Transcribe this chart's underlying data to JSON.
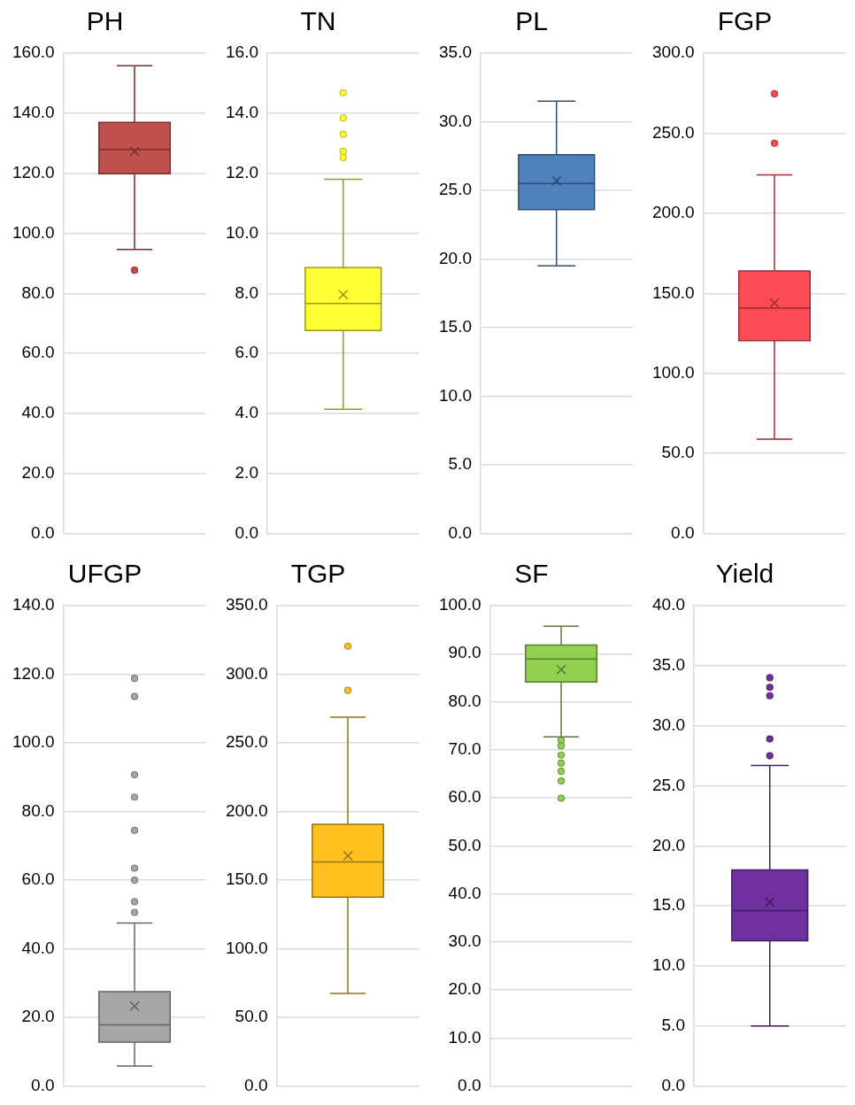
{
  "chart_data": [
    {
      "type": "box",
      "title": "PH",
      "categories": [
        null
      ],
      "ylim": [
        0,
        160
      ],
      "yticks": [
        {
          "value": 0,
          "label": "0.0"
        },
        {
          "value": 20,
          "label": "20.0"
        },
        {
          "value": 40,
          "label": "40.0"
        },
        {
          "value": 60,
          "label": "60.0"
        },
        {
          "value": 80,
          "label": "80.0"
        },
        {
          "value": 100,
          "label": "100.0"
        },
        {
          "value": 120,
          "label": "120.0"
        },
        {
          "value": 140,
          "label": "140.0"
        },
        {
          "value": 160,
          "label": "160.0"
        }
      ],
      "grid": "y",
      "tick_labels": "y",
      "legend": false,
      "series": [
        {
          "color": "#c0504d",
          "boxes": [
            {
              "low": 94.6,
              "q1": 119.8,
              "median": 127.9,
              "q3": 136.9,
              "high": 155.8,
              "mean": 127.3,
              "outliers": [
                87.7
              ]
            }
          ]
        }
      ]
    },
    {
      "type": "box",
      "title": "TN",
      "categories": [
        null
      ],
      "ylim": [
        0,
        16
      ],
      "yticks": [
        {
          "value": 0,
          "label": "0.0"
        },
        {
          "value": 2,
          "label": "2.0"
        },
        {
          "value": 4,
          "label": "4.0"
        },
        {
          "value": 6,
          "label": "6.0"
        },
        {
          "value": 8,
          "label": "8.0"
        },
        {
          "value": 10,
          "label": "10.0"
        },
        {
          "value": 12,
          "label": "12.0"
        },
        {
          "value": 14,
          "label": "14.0"
        },
        {
          "value": 16,
          "label": "16.0"
        }
      ],
      "grid": "y",
      "tick_labels": "y",
      "legend": false,
      "series": [
        {
          "color": "#ffff33",
          "boxes": [
            {
              "low": 4.14,
              "q1": 6.76,
              "median": 7.66,
              "q3": 8.86,
              "high": 11.8,
              "mean": 7.96,
              "outliers": [
                14.68,
                13.84,
                13.3,
                12.73,
                12.52
              ]
            }
          ]
        }
      ]
    },
    {
      "type": "box",
      "title": "PL",
      "categories": [
        null
      ],
      "ylim": [
        0,
        35
      ],
      "yticks": [
        {
          "value": 0,
          "label": "0.0"
        },
        {
          "value": 5,
          "label": "5.0"
        },
        {
          "value": 10,
          "label": "10.0"
        },
        {
          "value": 15,
          "label": "15.0"
        },
        {
          "value": 20,
          "label": "20.0"
        },
        {
          "value": 25,
          "label": "25.0"
        },
        {
          "value": 30,
          "label": "30.0"
        },
        {
          "value": 35,
          "label": "35.0"
        }
      ],
      "grid": "y",
      "tick_labels": "y",
      "legend": false,
      "series": [
        {
          "color": "#4f81bd",
          "boxes": [
            {
              "low": 19.5,
              "q1": 23.6,
              "median": 25.5,
              "q3": 27.6,
              "high": 31.5,
              "mean": 25.7
            }
          ]
        }
      ]
    },
    {
      "type": "box",
      "title": "FGP",
      "categories": [
        null
      ],
      "ylim": [
        0,
        300
      ],
      "yticks": [
        {
          "value": 0,
          "label": "0.0"
        },
        {
          "value": 50,
          "label": "50.0"
        },
        {
          "value": 100,
          "label": "100.0"
        },
        {
          "value": 150,
          "label": "150.0"
        },
        {
          "value": 200,
          "label": "200.0"
        },
        {
          "value": 250,
          "label": "250.0"
        },
        {
          "value": 300,
          "label": "300.0"
        }
      ],
      "grid": "y",
      "tick_labels": "y",
      "legend": false,
      "series": [
        {
          "color": "#ff4b55",
          "boxes": [
            {
              "low": 59,
              "q1": 120.4,
              "median": 140.7,
              "q3": 164,
              "high": 224,
              "mean": 144,
              "outliers": [
                274.6,
                243.7
              ]
            }
          ]
        }
      ]
    },
    {
      "type": "box",
      "title": "UFGP",
      "categories": [
        null
      ],
      "ylim": [
        0,
        140
      ],
      "yticks": [
        {
          "value": 0,
          "label": "0.0"
        },
        {
          "value": 20,
          "label": "20.0"
        },
        {
          "value": 40,
          "label": "40.0"
        },
        {
          "value": 60,
          "label": "60.0"
        },
        {
          "value": 80,
          "label": "80.0"
        },
        {
          "value": 100,
          "label": "100.0"
        },
        {
          "value": 120,
          "label": "120.0"
        },
        {
          "value": 140,
          "label": "140.0"
        }
      ],
      "grid": "y",
      "tick_labels": "y",
      "legend": false,
      "series": [
        {
          "color": "#a6a6a6",
          "boxes": [
            {
              "low": 5.8,
              "q1": 12.8,
              "median": 17.8,
              "q3": 27.5,
              "high": 47.5,
              "mean": 23.3,
              "outliers": [
                118.8,
                113.5,
                90.7,
                84.2,
                74.5,
                63.5,
                60,
                53.7,
                50.6
              ]
            }
          ]
        }
      ]
    },
    {
      "type": "box",
      "title": "TGP",
      "categories": [
        null
      ],
      "ylim": [
        0,
        350
      ],
      "yticks": [
        {
          "value": 0,
          "label": "0.0"
        },
        {
          "value": 50,
          "label": "50.0"
        },
        {
          "value": 100,
          "label": "100.0"
        },
        {
          "value": 150,
          "label": "150.0"
        },
        {
          "value": 200,
          "label": "200.0"
        },
        {
          "value": 250,
          "label": "250.0"
        },
        {
          "value": 300,
          "label": "300.0"
        },
        {
          "value": 350,
          "label": "350.0"
        }
      ],
      "grid": "y",
      "tick_labels": "y",
      "legend": false,
      "series": [
        {
          "color": "#ffc020",
          "boxes": [
            {
              "low": 67.5,
              "q1": 137.6,
              "median": 163.2,
              "q3": 190.7,
              "high": 268.7,
              "mean": 167.8,
              "outliers": [
                320.5,
                288.3
              ]
            }
          ]
        }
      ]
    },
    {
      "type": "box",
      "title": "SF",
      "categories": [
        null
      ],
      "ylim": [
        0,
        100
      ],
      "yticks": [
        {
          "value": 0,
          "label": "0.0"
        },
        {
          "value": 10,
          "label": "10.0"
        },
        {
          "value": 20,
          "label": "20.0"
        },
        {
          "value": 30,
          "label": "30.0"
        },
        {
          "value": 40,
          "label": "40.0"
        },
        {
          "value": 50,
          "label": "50.0"
        },
        {
          "value": 60,
          "label": "60.0"
        },
        {
          "value": 70,
          "label": "70.0"
        },
        {
          "value": 80,
          "label": "80.0"
        },
        {
          "value": 90,
          "label": "90.0"
        },
        {
          "value": 100,
          "label": "100.0"
        }
      ],
      "grid": "y",
      "tick_labels": "y",
      "legend": false,
      "series": [
        {
          "color": "#92d050",
          "boxes": [
            {
              "low": 72.7,
              "q1": 84.1,
              "median": 88.9,
              "q3": 91.8,
              "high": 95.7,
              "mean": 86.7,
              "outliers": [
                71.9,
                70.8,
                68.9,
                67.2,
                65.5,
                63.5,
                59.9
              ]
            }
          ]
        }
      ]
    },
    {
      "type": "box",
      "title": "Yield",
      "categories": [
        null
      ],
      "ylim": [
        0,
        40
      ],
      "yticks": [
        {
          "value": 0,
          "label": "0.0"
        },
        {
          "value": 5,
          "label": "5.0"
        },
        {
          "value": 10,
          "label": "10.0"
        },
        {
          "value": 15,
          "label": "15.0"
        },
        {
          "value": 20,
          "label": "20.0"
        },
        {
          "value": 25,
          "label": "25.0"
        },
        {
          "value": 30,
          "label": "30.0"
        },
        {
          "value": 35,
          "label": "35.0"
        },
        {
          "value": 40,
          "label": "40.0"
        }
      ],
      "grid": "y",
      "tick_labels": "y",
      "legend": false,
      "series": [
        {
          "color": "#7030a0",
          "boxes": [
            {
              "low": 5,
              "q1": 12.1,
              "median": 14.6,
              "q3": 18,
              "high": 26.7,
              "mean": 15.3,
              "outliers": [
                34,
                33.2,
                32.5,
                28.9,
                27.5
              ]
            }
          ]
        }
      ]
    }
  ]
}
